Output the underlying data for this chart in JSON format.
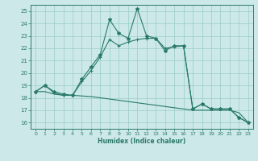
{
  "xlabel": "Humidex (Indice chaleur)",
  "ylabel": "",
  "bg_color": "#cce8e8",
  "grid_color": "#99cccc",
  "line_color": "#2a7a6a",
  "xlim": [
    -0.5,
    23.5
  ],
  "ylim": [
    15.5,
    25.5
  ],
  "yticks": [
    16,
    17,
    18,
    19,
    20,
    21,
    22,
    23,
    24,
    25
  ],
  "xticks": [
    0,
    1,
    2,
    3,
    4,
    5,
    6,
    7,
    8,
    9,
    10,
    11,
    12,
    13,
    14,
    15,
    16,
    17,
    18,
    19,
    20,
    21,
    22,
    23
  ],
  "line1_x": [
    0,
    1,
    2,
    3,
    4,
    5,
    6,
    7,
    8,
    9,
    10,
    11,
    12,
    13,
    14,
    15,
    16,
    17,
    18,
    19,
    20,
    21,
    22,
    23
  ],
  "line1_y": [
    18.5,
    19.0,
    18.5,
    18.3,
    18.2,
    19.5,
    20.5,
    21.5,
    24.3,
    23.2,
    22.8,
    25.2,
    23.0,
    22.8,
    21.8,
    22.2,
    22.2,
    17.1,
    17.5,
    17.1,
    17.1,
    17.1,
    16.4,
    16.0
  ],
  "line2_x": [
    0,
    1,
    2,
    3,
    4,
    5,
    6,
    7,
    8,
    9,
    10,
    11,
    12,
    13,
    14,
    15,
    16,
    17,
    18,
    19,
    20,
    21,
    22,
    23
  ],
  "line2_y": [
    18.5,
    19.0,
    18.4,
    18.2,
    18.2,
    19.3,
    20.2,
    21.3,
    22.7,
    22.2,
    22.5,
    22.7,
    22.8,
    22.8,
    22.0,
    22.1,
    22.2,
    17.1,
    17.5,
    17.1,
    17.1,
    17.1,
    16.4,
    16.0
  ],
  "line3_x": [
    0,
    1,
    2,
    3,
    4,
    5,
    6,
    7,
    8,
    9,
    10,
    11,
    12,
    13,
    14,
    15,
    16,
    17,
    18,
    19,
    20,
    21,
    22,
    23
  ],
  "line3_y": [
    18.5,
    18.5,
    18.3,
    18.2,
    18.2,
    18.15,
    18.1,
    18.0,
    17.9,
    17.8,
    17.7,
    17.6,
    17.5,
    17.4,
    17.3,
    17.2,
    17.1,
    17.0,
    17.0,
    17.0,
    17.0,
    17.0,
    16.8,
    16.0
  ]
}
